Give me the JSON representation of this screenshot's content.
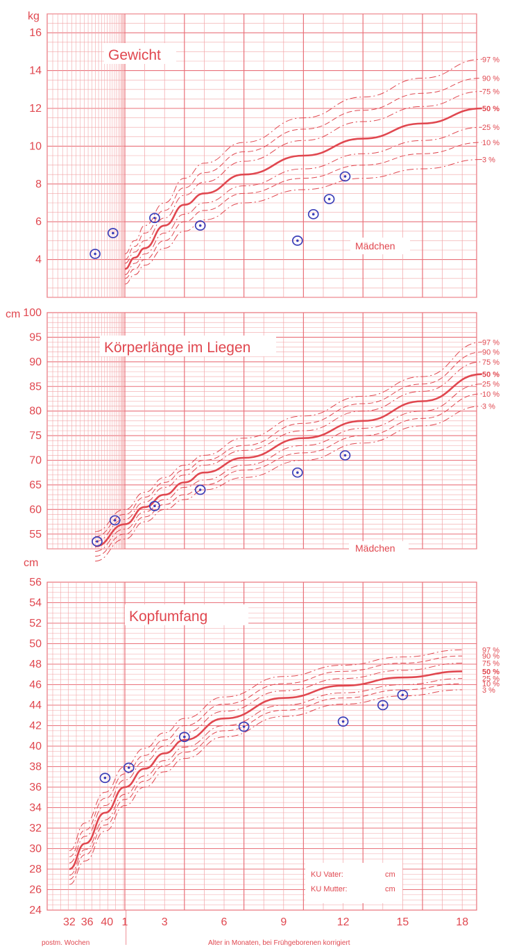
{
  "colors": {
    "grid": "#f2a3a6",
    "gridMajor": "#e9717a",
    "curve": "#e0474f",
    "marker": "#3b3fb8"
  },
  "chart_data": [
    {
      "id": "gewicht",
      "type": "line",
      "title": "Gewicht",
      "unit": "kg",
      "gender": "Mädchen",
      "ylim": [
        2,
        17
      ],
      "yticks": [
        4,
        6,
        8,
        10,
        12,
        14,
        16
      ],
      "xlim": [
        -1.8,
        18
      ],
      "percentile_labels": [
        "97 %",
        "90 %",
        "75 %",
        "50 %",
        "25 %",
        "10 %",
        "3 %"
      ],
      "x": [
        0,
        0.5,
        1,
        2,
        3,
        4,
        6,
        9,
        12,
        15,
        18
      ],
      "series": [
        {
          "name": "97 %",
          "values": [
            4.3,
            5.0,
            5.8,
            7.0,
            8.3,
            9.1,
            10.2,
            11.5,
            12.6,
            13.6,
            14.6
          ]
        },
        {
          "name": "90 %",
          "values": [
            4.0,
            4.7,
            5.4,
            6.6,
            7.8,
            8.6,
            9.7,
            10.9,
            11.9,
            12.8,
            13.6
          ]
        },
        {
          "name": "75 %",
          "values": [
            3.8,
            4.4,
            5.0,
            6.2,
            7.4,
            8.1,
            9.2,
            10.3,
            11.3,
            12.1,
            12.9
          ]
        },
        {
          "name": "50 %",
          "values": [
            3.5,
            4.1,
            4.6,
            5.8,
            6.9,
            7.5,
            8.5,
            9.5,
            10.4,
            11.2,
            12.0
          ]
        },
        {
          "name": "25 %",
          "values": [
            3.2,
            3.8,
            4.3,
            5.4,
            6.4,
            7.0,
            7.9,
            8.8,
            9.6,
            10.3,
            11.0
          ]
        },
        {
          "name": "10 %",
          "values": [
            3.0,
            3.5,
            4.0,
            5.0,
            6.0,
            6.6,
            7.5,
            8.3,
            9.0,
            9.6,
            10.2
          ]
        },
        {
          "name": "3 %",
          "values": [
            2.7,
            3.2,
            3.7,
            4.6,
            5.5,
            6.1,
            7.0,
            7.7,
            8.3,
            8.8,
            9.3
          ]
        }
      ],
      "measurements": [
        {
          "x": -1.5,
          "y": 4.3
        },
        {
          "x": -0.6,
          "y": 5.4
        },
        {
          "x": 1.5,
          "y": 6.2
        },
        {
          "x": 3.8,
          "y": 5.8
        },
        {
          "x": 8.7,
          "y": 5.0
        },
        {
          "x": 9.5,
          "y": 6.4
        },
        {
          "x": 10.3,
          "y": 7.2
        },
        {
          "x": 11.1,
          "y": 8.4
        }
      ]
    },
    {
      "id": "laenge",
      "type": "line",
      "title": "Körperlänge im Liegen",
      "unit": "cm",
      "gender": "Mädchen",
      "ylim": [
        52,
        100
      ],
      "yticks": [
        55,
        60,
        65,
        70,
        75,
        80,
        85,
        90,
        95,
        100
      ],
      "xlim": [
        -1.8,
        18
      ],
      "percentile_labels": [
        "97 %",
        "90 %",
        "75 %",
        "50 %",
        "25 %",
        "10 %",
        "3 %"
      ],
      "x": [
        -1.5,
        0,
        1,
        2,
        3,
        4,
        6,
        9,
        12,
        15,
        18
      ],
      "series": [
        {
          "name": "97 %",
          "values": [
            55.5,
            60.0,
            63.5,
            66.5,
            69.0,
            71.0,
            74.5,
            79.0,
            83.0,
            87.0,
            94.0
          ]
        },
        {
          "name": "90 %",
          "values": [
            54.5,
            59.0,
            62.5,
            65.5,
            68.0,
            70.0,
            73.0,
            77.5,
            81.5,
            85.5,
            92.0
          ]
        },
        {
          "name": "75 %",
          "values": [
            53.5,
            58.0,
            61.5,
            64.5,
            67.0,
            69.0,
            72.0,
            76.0,
            80.0,
            84.0,
            90.0
          ]
        },
        {
          "name": "50 %",
          "values": [
            52.5,
            57.0,
            60.5,
            63.0,
            65.5,
            67.5,
            70.5,
            74.5,
            78.0,
            82.0,
            87.5
          ]
        },
        {
          "name": "25 %",
          "values": [
            51.5,
            56.0,
            59.5,
            62.0,
            64.5,
            66.0,
            69.0,
            73.0,
            76.5,
            80.0,
            85.5
          ]
        },
        {
          "name": "10 %",
          "values": [
            50.5,
            55.0,
            58.5,
            61.0,
            63.0,
            65.0,
            68.0,
            71.5,
            75.0,
            78.5,
            83.5
          ]
        },
        {
          "name": "3 %",
          "values": [
            49.5,
            54.0,
            57.5,
            60.0,
            62.0,
            64.0,
            66.5,
            70.0,
            73.5,
            77.0,
            81.0
          ]
        }
      ],
      "measurements": [
        {
          "x": -1.4,
          "y": 53.5
        },
        {
          "x": -0.5,
          "y": 57.8
        },
        {
          "x": 1.5,
          "y": 60.7
        },
        {
          "x": 3.8,
          "y": 64.0
        },
        {
          "x": 8.7,
          "y": 67.5
        },
        {
          "x": 11.1,
          "y": 71.0
        }
      ]
    },
    {
      "id": "kopfumfang",
      "type": "line",
      "title": "Kopfumfang",
      "unit": "cm",
      "ylim": [
        24,
        56
      ],
      "yticks": [
        24,
        26,
        28,
        30,
        32,
        34,
        36,
        38,
        40,
        42,
        44,
        46,
        48,
        50,
        52,
        54,
        56
      ],
      "xlim": [
        -3.8,
        18
      ],
      "percentile_labels": [
        "97 %",
        "90 %",
        "75 %",
        "50 %",
        "25 %",
        "10 %",
        "3 %"
      ],
      "x_tick_labels": [
        {
          "x": -2.8,
          "label": "32"
        },
        {
          "x": -1.9,
          "label": "36"
        },
        {
          "x": -0.9,
          "label": "40"
        },
        {
          "x": 0,
          "label": "1"
        },
        {
          "x": 2,
          "label": "3"
        },
        {
          "x": 5,
          "label": "6"
        },
        {
          "x": 8,
          "label": "9"
        },
        {
          "x": 11,
          "label": "12"
        },
        {
          "x": 14,
          "label": "15"
        },
        {
          "x": 17,
          "label": "18"
        }
      ],
      "xlabel_left": "postm. Wochen",
      "xlabel": "Alter in Monaten, bei Frühgeborenen korrigiert",
      "ku_vater_label": "KU Vater:",
      "ku_vater_unit": "cm",
      "ku_mutter_label": "KU Mutter:",
      "ku_mutter_unit": "cm",
      "x": [
        -2.8,
        -2,
        -1,
        0,
        1,
        2,
        3,
        5,
        8,
        11,
        14,
        17
      ],
      "series": [
        {
          "name": "97 %",
          "values": [
            29.8,
            32.5,
            35.5,
            38.0,
            39.8,
            41.3,
            42.7,
            44.8,
            46.8,
            47.9,
            48.7,
            49.4
          ]
        },
        {
          "name": "90 %",
          "values": [
            29.2,
            31.8,
            34.9,
            37.3,
            39.1,
            40.6,
            42.0,
            44.1,
            46.1,
            47.3,
            48.1,
            48.8
          ]
        },
        {
          "name": "75 %",
          "values": [
            28.6,
            31.2,
            34.2,
            36.7,
            38.5,
            40.0,
            41.3,
            43.4,
            45.4,
            46.6,
            47.4,
            48.1
          ]
        },
        {
          "name": "50 %",
          "values": [
            28.0,
            30.5,
            33.5,
            36.0,
            37.8,
            39.3,
            40.6,
            42.7,
            44.7,
            45.9,
            46.7,
            47.3
          ]
        },
        {
          "name": "25 %",
          "values": [
            27.4,
            29.9,
            32.8,
            35.3,
            37.1,
            38.6,
            39.9,
            42.0,
            44.0,
            45.2,
            46.0,
            46.6
          ]
        },
        {
          "name": "10 %",
          "values": [
            27.0,
            29.4,
            32.3,
            34.8,
            36.6,
            38.1,
            39.4,
            41.5,
            43.5,
            44.7,
            45.5,
            46.1
          ]
        },
        {
          "name": "3 %",
          "values": [
            26.5,
            28.8,
            31.7,
            34.2,
            36.0,
            37.5,
            38.8,
            40.9,
            42.9,
            44.1,
            44.9,
            45.5
          ]
        }
      ],
      "measurements": [
        {
          "x": -1.0,
          "y": 36.9
        },
        {
          "x": 0.2,
          "y": 37.9
        },
        {
          "x": 3.0,
          "y": 40.9
        },
        {
          "x": 6.0,
          "y": 41.9
        },
        {
          "x": 11.0,
          "y": 42.4
        },
        {
          "x": 13.0,
          "y": 44.0
        },
        {
          "x": 14.0,
          "y": 45.0
        }
      ]
    }
  ]
}
